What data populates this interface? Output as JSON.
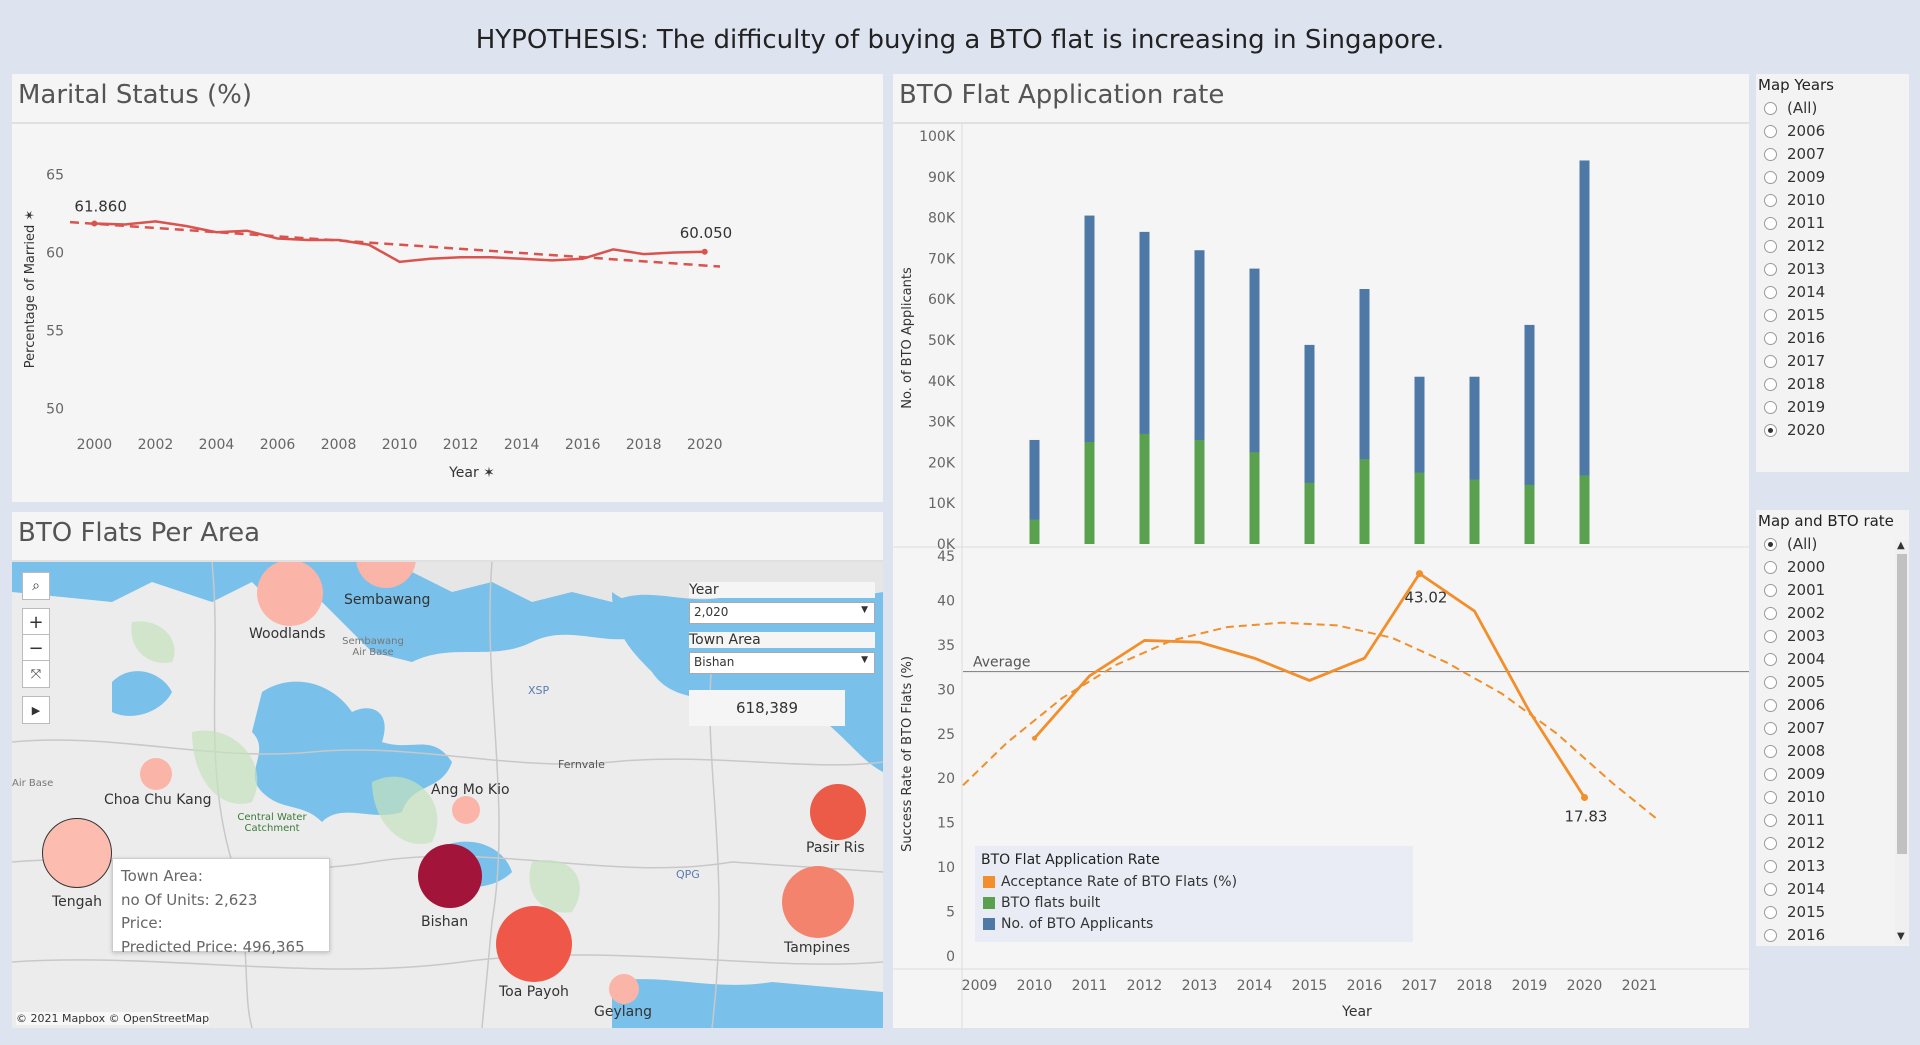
{
  "header": {
    "title": "HYPOTHESIS: The difficulty of buying a BTO flat is increasing in Singapore."
  },
  "marital": {
    "title": "Marital Status (%)",
    "ylabel": "Percentage of Married",
    "xlabel": "Year",
    "yticks": [
      "65",
      "60",
      "55",
      "50"
    ],
    "xticks": [
      "2000",
      "2002",
      "2004",
      "2006",
      "2008",
      "2010",
      "2012",
      "2014",
      "2016",
      "2018",
      "2020"
    ],
    "label_first": "61.860",
    "label_last": "60.050",
    "pin_icon": "pin-icon"
  },
  "bto": {
    "title": "BTO Flat Application rate",
    "ylabel_top": "No. of BTO Applicants",
    "ylabel_bottom": "Success Rate of BTO Flats  (%)",
    "xlabel": "Year",
    "yticks_top": [
      "100K",
      "90K",
      "80K",
      "70K",
      "60K",
      "50K",
      "40K",
      "30K",
      "20K",
      "10K",
      "0K"
    ],
    "yticks_bottom": [
      "45",
      "40",
      "35",
      "30",
      "25",
      "20",
      "15",
      "10",
      "5",
      "0"
    ],
    "xticks": [
      "2009",
      "2010",
      "2011",
      "2012",
      "2013",
      "2014",
      "2015",
      "2016",
      "2017",
      "2018",
      "2019",
      "2020",
      "2021"
    ],
    "average_label": "Average",
    "label_peak": "43.02",
    "label_last": "17.83",
    "legend_title": "BTO Flat Application Rate",
    "legend_items": [
      "Acceptance Rate of BTO Flats  (%)",
      "BTO flats built",
      "No. of BTO Applicants"
    ],
    "colors": {
      "applicants": "#4e79a7",
      "built": "#59a14f",
      "rate": "#f28e2b"
    }
  },
  "chart_data": [
    {
      "type": "line",
      "title": "Marital Status (%)",
      "xlabel": "Year",
      "ylabel": "Percentage of Married",
      "ylim": [
        49,
        66
      ],
      "xlim": [
        1999.2,
        2020.5
      ],
      "series": [
        {
          "values": [
            [
              2000,
              61.86
            ],
            [
              2001,
              61.8
            ],
            [
              2002,
              62.0
            ],
            [
              2003,
              61.7
            ],
            [
              2004,
              61.3
            ],
            [
              2005,
              61.4
            ],
            [
              2006,
              60.9
            ],
            [
              2007,
              60.8
            ],
            [
              2008,
              60.8
            ],
            [
              2009,
              60.5
            ],
            [
              2010,
              59.4
            ],
            [
              2011,
              59.6
            ],
            [
              2012,
              59.7
            ],
            [
              2013,
              59.7
            ],
            [
              2014,
              59.6
            ],
            [
              2015,
              59.5
            ],
            [
              2016,
              59.6
            ],
            [
              2017,
              60.2
            ],
            [
              2018,
              59.9
            ],
            [
              2019,
              60.0
            ],
            [
              2020,
              60.05
            ]
          ]
        }
      ],
      "trend": [
        [
          1999.2,
          61.95
        ],
        [
          2020.5,
          59.1
        ]
      ],
      "color": "#d9534f"
    },
    {
      "type": "bar",
      "title": "BTO Flat Application rate",
      "ylabel": "No. of BTO Applicants",
      "ylim": [
        0,
        100000
      ],
      "categories": [
        "2010",
        "2011",
        "2012",
        "2013",
        "2014",
        "2015",
        "2016",
        "2017",
        "2018",
        "2019",
        "2020"
      ],
      "series": [
        {
          "name": "No. of BTO Applicants",
          "values": [
            25500,
            80500,
            76500,
            72000,
            67500,
            48800,
            62500,
            41000,
            41000,
            53700,
            94000
          ]
        },
        {
          "name": "BTO flats built",
          "values": [
            6000,
            25000,
            27000,
            25500,
            22500,
            15000,
            20800,
            17500,
            15800,
            14500,
            16800
          ]
        }
      ]
    },
    {
      "type": "line",
      "ylabel": "Success Rate of BTO Flats  (%)",
      "xlabel": "Year",
      "ylim": [
        0,
        45
      ],
      "xlim": [
        2008.7,
        2021.3
      ],
      "series": [
        {
          "name": "Acceptance Rate of BTO Flats  (%)",
          "values": [
            [
              2010,
              24.5
            ],
            [
              2011,
              31.5
            ],
            [
              2012,
              35.5
            ],
            [
              2013,
              35.3
            ],
            [
              2014,
              33.5
            ],
            [
              2015,
              31.0
            ],
            [
              2016,
              33.5
            ],
            [
              2017,
              43.02
            ],
            [
              2018,
              38.8
            ],
            [
              2019,
              27.5
            ],
            [
              2020,
              17.83
            ]
          ]
        }
      ],
      "average": 32.0,
      "trend_curve": [
        [
          2008.7,
          19.2
        ],
        [
          2009.5,
          24.0
        ],
        [
          2010.5,
          29.0
        ],
        [
          2011.5,
          32.8
        ],
        [
          2012.5,
          35.5
        ],
        [
          2013.5,
          37.0
        ],
        [
          2014.5,
          37.5
        ],
        [
          2015.5,
          37.2
        ],
        [
          2016.5,
          35.8
        ],
        [
          2017.5,
          33.0
        ],
        [
          2018.5,
          29.5
        ],
        [
          2019.5,
          25.0
        ],
        [
          2020.5,
          19.5
        ],
        [
          2021.3,
          15.5
        ]
      ]
    }
  ],
  "map": {
    "title": "BTO Flats Per Area",
    "year_label": "Year",
    "year_value": "2,020",
    "town_label": "Town Area",
    "town_value": "Bishan",
    "price_value": "618,389",
    "copyright": "© 2021 Mapbox © OpenStreetMap",
    "tooltip": {
      "line1": "Town Area:",
      "line2": "no Of Units: 2,623",
      "line3": "Price:",
      "line4": "Predicted Price: 496,365"
    },
    "place_labels": [
      "Sembawang",
      "Woodlands",
      "Sembawang Air Base",
      "XSP",
      "Choa Chu Kang",
      "Central Water Catchment",
      "Ang Mo Kio",
      "Fernvale",
      "Pasir Ris",
      "QPG",
      "Tengah",
      "Bishan",
      "Toa Payoh",
      "Tampines",
      "Geylang",
      "Air Base"
    ],
    "bubbles": [
      {
        "name": "Woodlands",
        "color": "#fbb4a8"
      },
      {
        "name": "Sembawang",
        "color": "#fbb4a8"
      },
      {
        "name": "Choa Chu Kang",
        "color": "#fbb4a8"
      },
      {
        "name": "Ang Mo Kio",
        "color": "#fbb4a8"
      },
      {
        "name": "Tengah",
        "color": "#fcbcb0"
      },
      {
        "name": "Bishan",
        "color": "#a3143a"
      },
      {
        "name": "Toa Payoh",
        "color": "#ef5848"
      },
      {
        "name": "Pasir Ris",
        "color": "#ec5a48"
      },
      {
        "name": "Tampines",
        "color": "#f4836e"
      },
      {
        "name": "Geylang",
        "color": "#fbb4a8"
      }
    ]
  },
  "filters": {
    "map_years": {
      "title": "Map Years",
      "options": [
        "(All)",
        "2006",
        "2007",
        "2009",
        "2010",
        "2011",
        "2012",
        "2013",
        "2014",
        "2015",
        "2016",
        "2017",
        "2018",
        "2019",
        "2020"
      ],
      "selected": "2020"
    },
    "map_bto": {
      "title": "Map and BTO rate",
      "options": [
        "(All)",
        "2000",
        "2001",
        "2002",
        "2003",
        "2004",
        "2005",
        "2006",
        "2007",
        "2008",
        "2009",
        "2010",
        "2011",
        "2012",
        "2013",
        "2014",
        "2015",
        "2016"
      ],
      "selected": "(All)"
    }
  }
}
